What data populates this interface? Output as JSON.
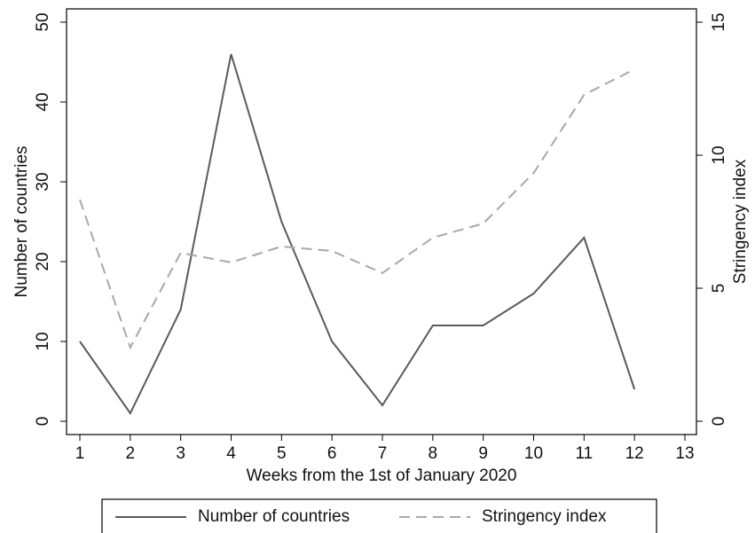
{
  "chart_data": {
    "type": "line",
    "x_label": "Weeks from the 1st of January 2020",
    "y_label": "Number of countries",
    "y2_label": "Stringency index",
    "x": [
      1,
      2,
      3,
      4,
      5,
      6,
      7,
      8,
      9,
      10,
      11,
      12
    ],
    "series": [
      {
        "name": "Number of countries",
        "color": "#5a5a5a",
        "dash": false,
        "values": [
          10,
          1,
          14,
          46,
          25,
          10,
          2,
          12,
          12,
          16,
          23,
          4
        ]
      },
      {
        "name": "Stringency index",
        "color": "#a8a8a8",
        "dash": true,
        "axis": "y2",
        "values": [
          8.33,
          2.77,
          6.33,
          5.97,
          6.57,
          6.4,
          5.57,
          6.9,
          7.43,
          9.33,
          12.27,
          13.23
        ]
      }
    ],
    "xlim": [
      1,
      13
    ],
    "xticks": [
      1,
      2,
      3,
      4,
      5,
      6,
      7,
      8,
      9,
      10,
      11,
      12,
      13
    ],
    "ylim": [
      0,
      50
    ],
    "yticks": [
      0,
      10,
      20,
      30,
      40,
      50
    ],
    "y2lim": [
      0,
      15
    ],
    "y2ticks": [
      0,
      5,
      10,
      15
    ],
    "grid": false,
    "legend": "bottom"
  }
}
